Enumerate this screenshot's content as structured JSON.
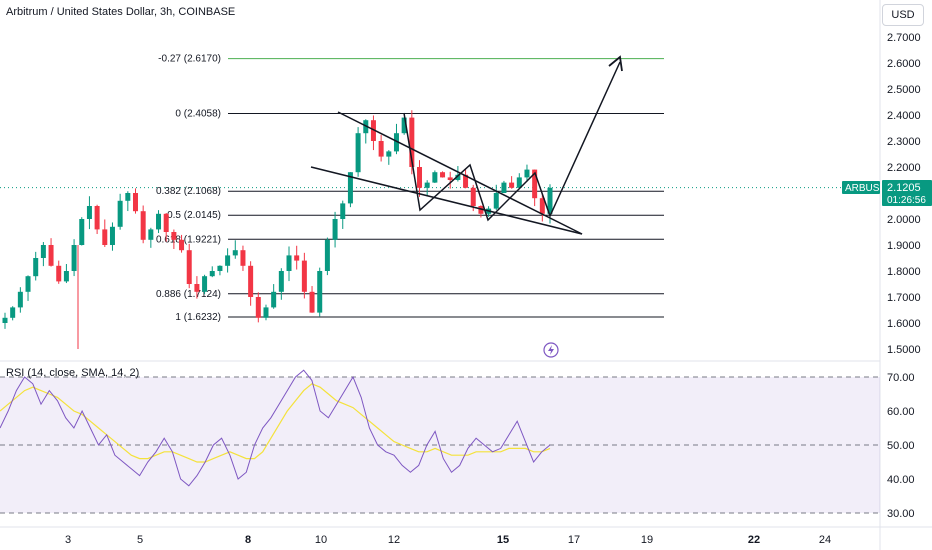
{
  "header": {
    "title": "Arbitrum / United States Dollar, 3h, COINBASE",
    "currency_button": "USD"
  },
  "price_scale": {
    "ticks": [
      "2.7000",
      "2.6000",
      "2.5000",
      "2.4000",
      "2.3000",
      "2.2000",
      "2.1000",
      "2.0000",
      "1.9000",
      "1.8000",
      "1.7000",
      "1.6000",
      "1.5000"
    ],
    "current_price": "2.1205",
    "countdown": "01:26:56",
    "symbol_badge": "ARBUSD",
    "accent": "#089981"
  },
  "rsi_scale": {
    "label": "RSI (14, close, SMA, 14, 2)",
    "ticks": [
      "70.00",
      "60.00",
      "50.00",
      "40.00",
      "30.00"
    ]
  },
  "time_axis": {
    "ticks": [
      "3",
      "5",
      "8",
      "10",
      "12",
      "15",
      "17",
      "19",
      "22",
      "24"
    ]
  },
  "chart_data": [
    {
      "type": "candlestick",
      "symbol": "ARBUSD",
      "ylim": [
        1.48,
        2.76
      ],
      "fib_levels": [
        {
          "label": "-0.27 (2.6170)",
          "value": 2.617,
          "color": "#4caf50"
        },
        {
          "label": "0 (2.4058)",
          "value": 2.4058,
          "color": "#131722"
        },
        {
          "label": "0.382 (2.1068)",
          "value": 2.1068,
          "color": "#131722"
        },
        {
          "label": "0.5 (2.0145)",
          "value": 2.0145,
          "color": "#131722"
        },
        {
          "label": "0.618 (1.9221)",
          "value": 1.9221,
          "color": "#131722"
        },
        {
          "label": "0.886 (1.7124)",
          "value": 1.7124,
          "color": "#131722"
        },
        {
          "label": "1 (1.6232)",
          "value": 1.6232,
          "color": "#131722"
        }
      ],
      "up_color": "#089981",
      "down_color": "#f23645",
      "close_path": [
        1.62,
        1.66,
        1.72,
        1.78,
        1.85,
        1.9,
        1.82,
        1.76,
        1.8,
        1.9,
        2.0,
        2.05,
        1.96,
        1.9,
        1.97,
        2.07,
        2.1,
        2.03,
        1.92,
        1.96,
        2.02,
        1.95,
        1.92,
        1.88,
        1.75,
        1.72,
        1.78,
        1.8,
        1.82,
        1.86,
        1.88,
        1.82,
        1.7,
        1.62,
        1.66,
        1.72,
        1.8,
        1.86,
        1.84,
        1.72,
        1.64,
        1.8,
        1.92,
        2.0,
        2.06,
        2.18,
        2.33,
        2.38,
        2.3,
        2.24,
        2.26,
        2.33,
        2.39,
        2.2,
        2.12,
        2.14,
        2.18,
        2.16,
        2.15,
        2.17,
        2.12,
        2.05,
        2.02,
        2.04,
        2.1,
        2.14,
        2.12,
        2.16,
        2.19,
        2.08,
        2.02,
        2.12
      ]
    },
    {
      "type": "line",
      "name": "RSI (14, close, SMA, 14, 2)",
      "ylim": [
        28,
        74
      ],
      "bands": [
        70,
        50,
        30
      ],
      "rsi_color": "#7e57c2",
      "sma_color": "#f4e23b",
      "band_fill": "#7e57c2",
      "rsi": [
        55,
        60,
        66,
        70,
        68,
        62,
        66,
        63,
        58,
        55,
        60,
        55,
        50,
        53,
        47,
        45,
        43,
        41,
        45,
        48,
        52,
        48,
        40,
        38,
        41,
        45,
        50,
        52,
        47,
        40,
        42,
        50,
        55,
        58,
        62,
        66,
        70,
        72,
        69,
        60,
        58,
        62,
        66,
        70,
        64,
        55,
        50,
        48,
        47,
        44,
        42,
        44,
        50,
        54,
        46,
        42,
        44,
        49,
        52,
        50,
        48,
        49,
        53,
        57,
        51,
        45,
        48,
        50
      ],
      "sma": [
        60,
        62,
        64,
        66,
        67,
        66,
        65,
        64,
        62,
        60,
        59,
        57,
        55,
        53,
        51,
        49,
        47,
        46,
        46,
        47,
        48,
        48,
        47,
        46,
        45,
        45,
        46,
        47,
        48,
        47,
        46,
        46,
        48,
        52,
        56,
        60,
        63,
        66,
        68,
        67,
        65,
        63,
        62,
        61,
        59,
        57,
        55,
        53,
        51,
        50,
        49,
        48,
        48,
        49,
        48,
        47,
        47,
        47,
        48,
        48,
        48,
        48,
        49,
        49,
        49,
        48,
        48,
        49
      ]
    }
  ],
  "drawings": {
    "color": "#131722"
  }
}
